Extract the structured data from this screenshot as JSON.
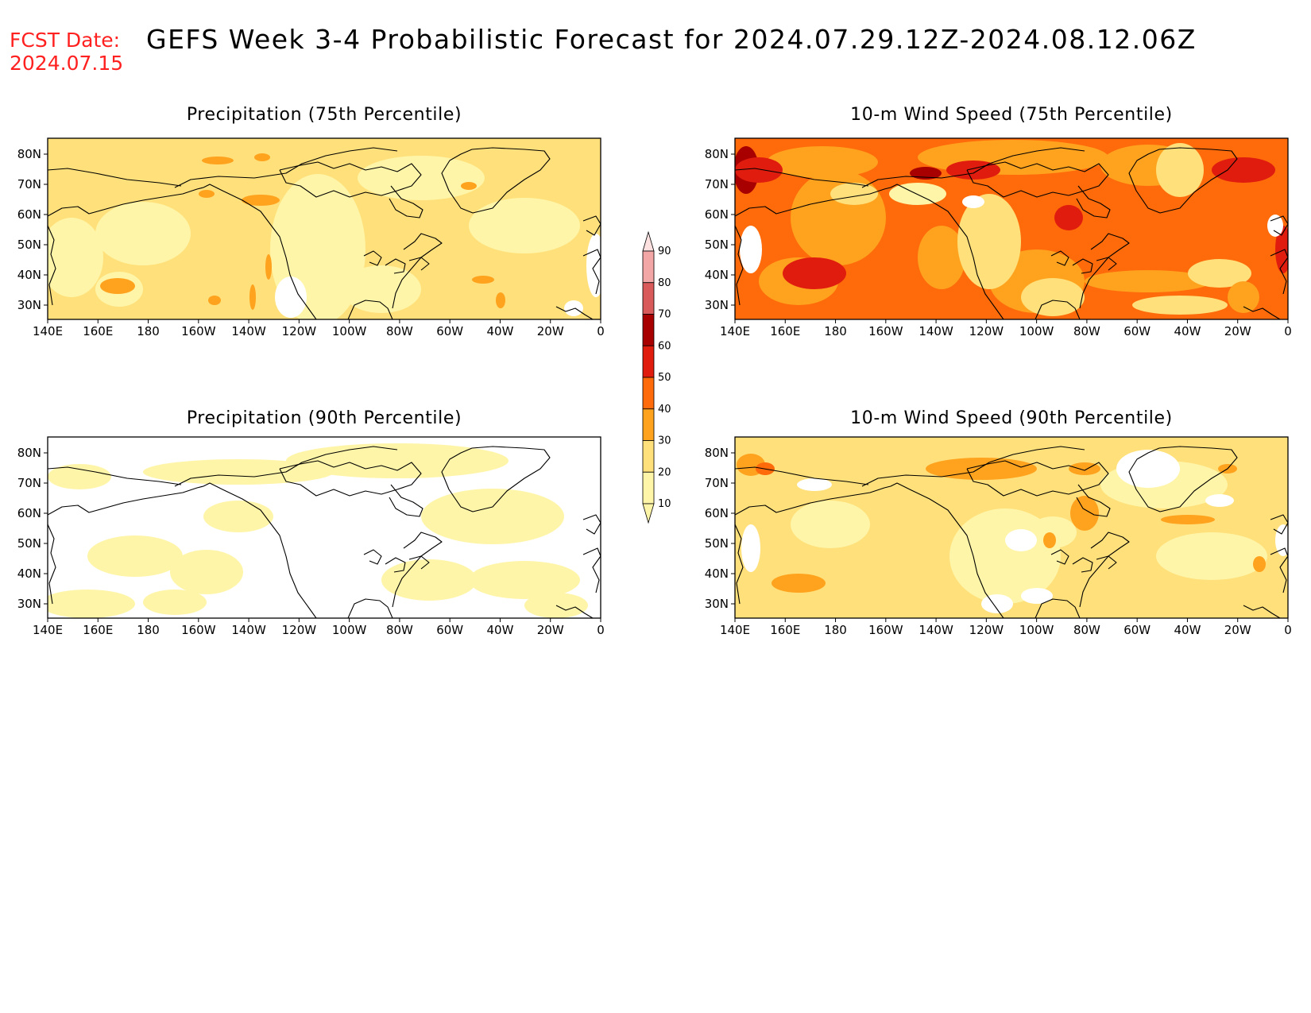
{
  "header": {
    "fcst_label": "FCST Date:",
    "fcst_date": "2024.07.15",
    "title": "GEFS Week 3-4 Probabilistic Forecast for 2024.07.29.12Z-2024.08.12.06Z"
  },
  "panels": [
    {
      "id": "precip-75",
      "title": "Precipitation (75th Percentile)",
      "scheme": "p75"
    },
    {
      "id": "wind-75",
      "title": "10-m Wind Speed (75th Percentile)",
      "scheme": "w75"
    },
    {
      "id": "precip-90",
      "title": "Precipitation (90th Percentile)",
      "scheme": "p90"
    },
    {
      "id": "wind-90",
      "title": "10-m Wind Speed (90th Percentile)",
      "scheme": "w90"
    }
  ],
  "axes": {
    "lon_labels": [
      "140E",
      "160E",
      "180",
      "160W",
      "140W",
      "120W",
      "100W",
      "80W",
      "60W",
      "40W",
      "20W",
      "0"
    ],
    "lat_labels": [
      "80N",
      "70N",
      "60N",
      "50N",
      "40N",
      "30N"
    ]
  },
  "colorbar": {
    "levels": [
      "10",
      "20",
      "30",
      "40",
      "50",
      "60",
      "70",
      "80",
      "90"
    ],
    "colors": [
      "#fff5a8",
      "#ffe07a",
      "#ffa21e",
      "#ff6a0a",
      "#e01c0e",
      "#a80000",
      "#d85a5a",
      "#f2a6a6",
      "#fde0e0"
    ]
  },
  "map_colors": {
    "white": "#ffffff",
    "light_yellow": "#fff5a8",
    "yellow": "#ffe07a",
    "orange": "#ffa21e",
    "dark_orange": "#ff6a0a",
    "red": "#e01c0e",
    "dark_red": "#a80000",
    "coastline": "#000000"
  }
}
